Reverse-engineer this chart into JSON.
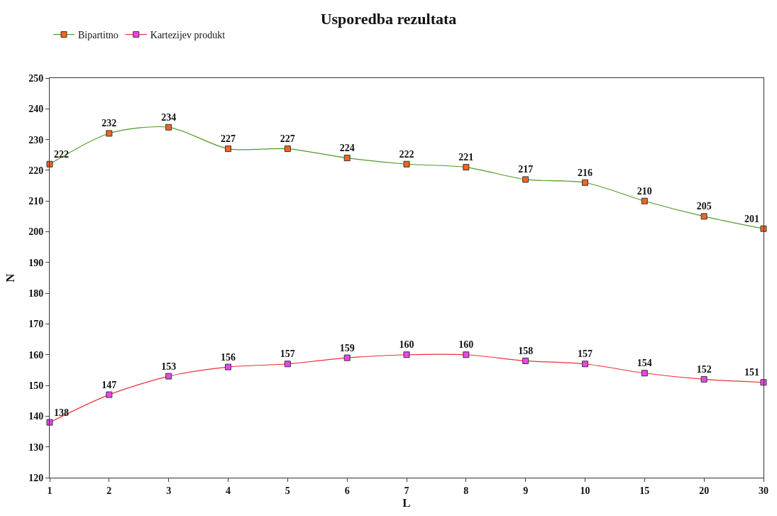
{
  "chart_data": {
    "type": "line",
    "title": "Usporedba rezultata",
    "xlabel": "L",
    "ylabel": "N",
    "categories": [
      "1",
      "2",
      "3",
      "4",
      "5",
      "6",
      "7",
      "8",
      "9",
      "10",
      "15",
      "20",
      "30"
    ],
    "series": [
      {
        "name": "Bipartitno",
        "color": "#4e9a2a",
        "colors": [
          "#f26522",
          "#f26522",
          "#f26522",
          "#f26522",
          "#f26522",
          "#f26522",
          "#f26522",
          "#f26522",
          "#f26522",
          "#f26522",
          "#f26522",
          "#f26522",
          "#f26522"
        ],
        "values": [
          222,
          232,
          234,
          227,
          227,
          224,
          222,
          221,
          217,
          216,
          210,
          205,
          201
        ]
      },
      {
        "name": "Kartezijev produkt",
        "color": "#e8333a",
        "colors": [
          "#ee44ee",
          "#ee44ee",
          "#ee44ee",
          "#ee44ee",
          "#ee44ee",
          "#ee44ee",
          "#ee44ee",
          "#ee44ee",
          "#ee44ee",
          "#ee44ee",
          "#ee44ee",
          "#ee44ee",
          "#ee44ee"
        ],
        "values": [
          138,
          147,
          153,
          156,
          157,
          159,
          160,
          160,
          158,
          157,
          154,
          152,
          151
        ]
      }
    ],
    "ylim": [
      120,
      250
    ],
    "yticks": [
      120,
      130,
      140,
      150,
      160,
      170,
      180,
      190,
      200,
      210,
      220,
      230,
      240,
      250
    ],
    "data_labels": true,
    "marker": "square",
    "line_style": "solid",
    "legend": "top left"
  }
}
